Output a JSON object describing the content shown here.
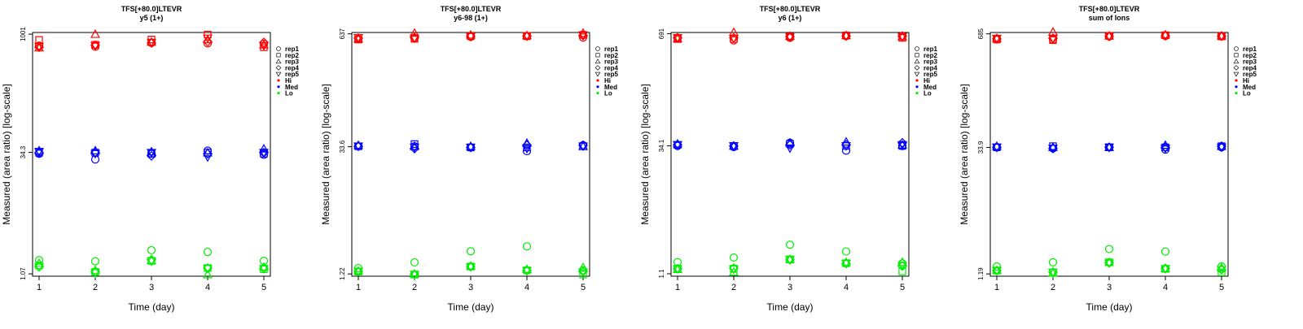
{
  "colors": {
    "Hi": "#ff0000",
    "Med": "#0000ff",
    "Lo": "#00ee00"
  },
  "chart_data": [
    {
      "type": "scatter",
      "title": "TFS[+80.0]LTEVR",
      "subtitle": "y5 (1+)",
      "xlabel": "Time (day)",
      "ylabel": "Measured (area ratio) [log-scale]",
      "xticks": [
        "1",
        "2",
        "3",
        "4",
        "5"
      ],
      "yticks": [
        1.07,
        34.3,
        1001
      ],
      "ytick_labels": [
        "1.07",
        "34.3",
        "1001"
      ],
      "ylim": [
        1.0,
        1050
      ],
      "log_y": true,
      "legend": {
        "placement": "right",
        "reps": [
          "rep1",
          "rep2",
          "rep3",
          "rep4",
          "rep5"
        ],
        "levels": [
          "Hi",
          "Med",
          "Lo"
        ]
      },
      "series": [
        {
          "level": "Hi",
          "points": [
            {
              "rep": "rep1",
              "values": [
                720,
                700,
                780,
                770,
                760
              ]
            },
            {
              "rep": "rep2",
              "values": [
                850,
                740,
                860,
                990,
                690
              ]
            },
            {
              "rep": "rep3",
              "values": [
                680,
                1000,
                800,
                860,
                740
              ]
            },
            {
              "rep": "rep4",
              "values": [
                690,
                730,
                780,
                810,
                790
              ]
            },
            {
              "rep": "rep5",
              "values": [
                700,
                720,
                790,
                890,
                720
              ]
            }
          ]
        },
        {
          "level": "Med",
          "points": [
            {
              "rep": "rep1",
              "values": [
                33,
                28,
                33,
                36,
                32
              ]
            },
            {
              "rep": "rep2",
              "values": [
                34,
                34,
                33,
                34,
                33
              ]
            },
            {
              "rep": "rep3",
              "values": [
                36,
                36,
                35,
                34,
                38
              ]
            },
            {
              "rep": "rep4",
              "values": [
                34,
                34,
                31,
                33,
                34
              ]
            },
            {
              "rep": "rep5",
              "values": [
                35,
                33,
                34,
                30,
                34
              ]
            }
          ]
        },
        {
          "level": "Lo",
          "points": [
            {
              "rep": "rep1",
              "values": [
                1.58,
                1.53,
                2.1,
                2.0,
                1.55
              ]
            },
            {
              "rep": "rep2",
              "values": [
                1.36,
                1.13,
                1.55,
                1.26,
                1.22
              ]
            },
            {
              "rep": "rep3",
              "values": [
                1.45,
                1.18,
                1.58,
                1.05,
                1.3
              ]
            },
            {
              "rep": "rep4",
              "values": [
                1.31,
                1.14,
                1.6,
                1.26,
                1.25
              ]
            },
            {
              "rep": "rep5",
              "values": [
                1.3,
                1.1,
                1.53,
                1.24,
                1.24
              ]
            }
          ]
        }
      ]
    },
    {
      "type": "scatter",
      "title": "TFS[+80.0]LTEVR",
      "subtitle": "y6-98 (1+)",
      "xlabel": "Time (day)",
      "ylabel": "Measured (area ratio) [log-scale]",
      "xticks": [
        "1",
        "2",
        "3",
        "4",
        "5"
      ],
      "yticks": [
        1.22,
        33.6,
        637
      ],
      "ytick_labels": [
        "1.22",
        "33.6",
        "637"
      ],
      "ylim": [
        1.15,
        660
      ],
      "log_y": true,
      "legend": {
        "placement": "right",
        "reps": [
          "rep1",
          "rep2",
          "rep3",
          "rep4",
          "rep5"
        ],
        "levels": [
          "Hi",
          "Med",
          "Lo"
        ]
      },
      "series": [
        {
          "level": "Hi",
          "points": [
            {
              "rep": "rep1",
              "values": [
                560,
                570,
                590,
                600,
                580
              ]
            },
            {
              "rep": "rep2",
              "values": [
                550,
                560,
                600,
                600,
                620
              ]
            },
            {
              "rep": "rep3",
              "values": [
                560,
                650,
                620,
                610,
                650
              ]
            },
            {
              "rep": "rep4",
              "values": [
                570,
                580,
                600,
                600,
                610
              ]
            },
            {
              "rep": "rep5",
              "values": [
                575,
                570,
                590,
                605,
                615
              ]
            }
          ]
        },
        {
          "level": "Med",
          "points": [
            {
              "rep": "rep1",
              "values": [
                34,
                34,
                33,
                30,
                35
              ]
            },
            {
              "rep": "rep2",
              "values": [
                34,
                36,
                33,
                33,
                34
              ]
            },
            {
              "rep": "rep3",
              "values": [
                35,
                34,
                34,
                37,
                34
              ]
            },
            {
              "rep": "rep4",
              "values": [
                34,
                32,
                33,
                35,
                35
              ]
            },
            {
              "rep": "rep5",
              "values": [
                34,
                33,
                33,
                32,
                34
              ]
            }
          ]
        },
        {
          "level": "Lo",
          "points": [
            {
              "rep": "rep1",
              "values": [
                1.42,
                1.65,
                2.2,
                2.5,
                1.34
              ]
            },
            {
              "rep": "rep2",
              "values": [
                1.3,
                1.2,
                1.48,
                1.34,
                1.2
              ]
            },
            {
              "rep": "rep3",
              "values": [
                1.32,
                1.22,
                1.5,
                1.38,
                1.45
              ]
            },
            {
              "rep": "rep4",
              "values": [
                1.3,
                1.21,
                1.48,
                1.33,
                1.3
              ]
            },
            {
              "rep": "rep5",
              "values": [
                1.3,
                1.2,
                1.46,
                1.32,
                1.28
              ]
            }
          ]
        }
      ]
    },
    {
      "type": "scatter",
      "title": "TFS[+80.0]LTEVR",
      "subtitle": "y6 (1+)",
      "xlabel": "Time (day)",
      "ylabel": "Measured (area ratio) [log-scale]",
      "xticks": [
        "1",
        "2",
        "3",
        "4",
        "5"
      ],
      "yticks": [
        1.1,
        34.1,
        691
      ],
      "ytick_labels": [
        "1.1",
        "34.1",
        "691"
      ],
      "ylim": [
        1.03,
        715
      ],
      "log_y": true,
      "legend": {
        "placement": "right",
        "reps": [
          "rep1",
          "rep2",
          "rep3",
          "rep4",
          "rep5"
        ],
        "levels": [
          "Hi",
          "Med",
          "Lo"
        ]
      },
      "series": [
        {
          "level": "Hi",
          "points": [
            {
              "rep": "rep1",
              "values": [
                620,
                580,
                620,
                650,
                650
              ]
            },
            {
              "rep": "rep2",
              "values": [
                600,
                600,
                640,
                660,
                620
              ]
            },
            {
              "rep": "rep3",
              "values": [
                610,
                720,
                650,
                660,
                640
              ]
            },
            {
              "rep": "rep4",
              "values": [
                620,
                620,
                640,
                650,
                650
              ]
            },
            {
              "rep": "rep5",
              "values": [
                620,
                610,
                630,
                650,
                640
              ]
            }
          ]
        },
        {
          "level": "Med",
          "points": [
            {
              "rep": "rep1",
              "values": [
                34,
                33,
                37,
                30,
                34
              ]
            },
            {
              "rep": "rep2",
              "values": [
                35,
                34,
                36,
                34,
                34
              ]
            },
            {
              "rep": "rep3",
              "values": [
                36,
                34,
                37,
                38,
                35
              ]
            },
            {
              "rep": "rep4",
              "values": [
                35,
                34,
                35,
                35,
                37
              ]
            },
            {
              "rep": "rep5",
              "values": [
                35,
                34,
                32,
                34,
                35
              ]
            }
          ]
        },
        {
          "level": "Lo",
          "points": [
            {
              "rep": "rep1",
              "values": [
                1.5,
                1.7,
                2.4,
                2.0,
                1.45
              ]
            },
            {
              "rep": "rep2",
              "values": [
                1.26,
                1.26,
                1.62,
                1.46,
                1.17
              ]
            },
            {
              "rep": "rep3",
              "values": [
                1.24,
                1.15,
                1.62,
                1.5,
                1.5
              ]
            },
            {
              "rep": "rep4",
              "values": [
                1.26,
                1.28,
                1.6,
                1.45,
                1.35
              ]
            },
            {
              "rep": "rep5",
              "values": [
                1.25,
                1.24,
                1.6,
                1.45,
                1.36
              ]
            }
          ]
        }
      ]
    },
    {
      "type": "scatter",
      "title": "TFS[+80.0]LTEVR",
      "subtitle": "sum of Ions",
      "xlabel": "Time (day)",
      "ylabel": "Measured (area ratio) [log-scale]",
      "xticks": [
        "1",
        "2",
        "3",
        "4",
        "5"
      ],
      "yticks": [
        1.19,
        33.9,
        685
      ],
      "ytick_labels": [
        "1.19",
        "33.9",
        "685"
      ],
      "ylim": [
        1.12,
        710
      ],
      "log_y": true,
      "legend": {
        "placement": "right",
        "reps": [
          "rep1",
          "rep2",
          "rep3",
          "rep4",
          "rep5"
        ],
        "levels": [
          "Hi",
          "Med",
          "Lo"
        ]
      },
      "series": [
        {
          "level": "Hi",
          "points": [
            {
              "rep": "rep1",
              "values": [
                600,
                590,
                640,
                650,
                640
              ]
            },
            {
              "rep": "rep2",
              "values": [
                590,
                580,
                650,
                660,
                640
              ]
            },
            {
              "rep": "rep3",
              "values": [
                610,
                720,
                650,
                670,
                650
              ]
            },
            {
              "rep": "rep4",
              "values": [
                600,
                610,
                640,
                650,
                645
              ]
            },
            {
              "rep": "rep5",
              "values": [
                605,
                605,
                640,
                655,
                645
              ]
            }
          ]
        },
        {
          "level": "Med",
          "points": [
            {
              "rep": "rep1",
              "values": [
                34,
                33,
                34,
                32,
                34
              ]
            },
            {
              "rep": "rep2",
              "values": [
                34,
                35,
                34,
                34,
                35
              ]
            },
            {
              "rep": "rep3",
              "values": [
                35,
                34,
                34,
                36,
                35
              ]
            },
            {
              "rep": "rep4",
              "values": [
                34,
                33,
                34,
                34,
                35
              ]
            },
            {
              "rep": "rep5",
              "values": [
                34,
                33,
                34,
                33,
                34
              ]
            }
          ]
        },
        {
          "level": "Lo",
          "points": [
            {
              "rep": "rep1",
              "values": [
                1.45,
                1.62,
                2.3,
                2.15,
                1.45
              ]
            },
            {
              "rep": "rep2",
              "values": [
                1.3,
                1.24,
                1.62,
                1.36,
                1.24
              ]
            },
            {
              "rep": "rep3",
              "values": [
                1.31,
                1.22,
                1.62,
                1.38,
                1.4
              ]
            },
            {
              "rep": "rep4",
              "values": [
                1.3,
                1.25,
                1.6,
                1.38,
                1.33
              ]
            },
            {
              "rep": "rep5",
              "values": [
                1.29,
                1.24,
                1.58,
                1.36,
                1.33
              ]
            }
          ]
        }
      ]
    }
  ]
}
